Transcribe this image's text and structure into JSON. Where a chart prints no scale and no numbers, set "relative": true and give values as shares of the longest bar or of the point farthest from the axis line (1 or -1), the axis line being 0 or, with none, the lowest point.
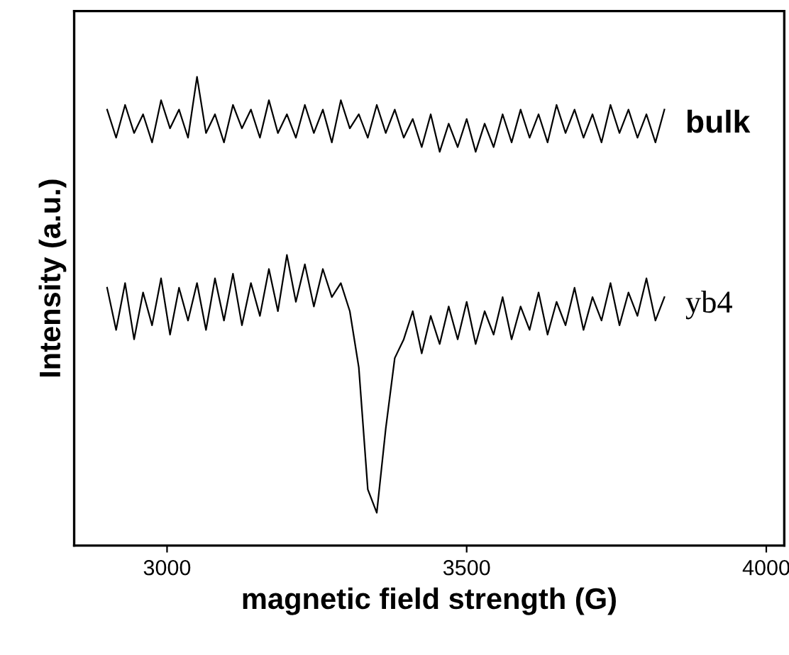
{
  "chart_data": {
    "type": "line",
    "relative": true,
    "xlabel": "magnetic field strength (G)",
    "ylabel": "Intensity (a.u.)",
    "xlim": [
      2845,
      4030
    ],
    "xticks": [
      3000,
      3500,
      4000
    ],
    "grid": false,
    "legend": false,
    "marker": "none",
    "line_style": "solid",
    "x": [
      2900,
      2915,
      2930,
      2945,
      2960,
      2975,
      2990,
      3005,
      3020,
      3035,
      3050,
      3065,
      3080,
      3095,
      3110,
      3125,
      3140,
      3155,
      3170,
      3185,
      3200,
      3215,
      3230,
      3245,
      3260,
      3275,
      3290,
      3305,
      3320,
      3335,
      3350,
      3365,
      3380,
      3395,
      3410,
      3425,
      3440,
      3455,
      3470,
      3485,
      3500,
      3515,
      3530,
      3545,
      3560,
      3575,
      3590,
      3605,
      3620,
      3635,
      3650,
      3665,
      3680,
      3695,
      3710,
      3725,
      3740,
      3755,
      3770,
      3785,
      3800,
      3815,
      3830
    ],
    "series": [
      {
        "name": "bulk",
        "color": "#000000",
        "values": [
          0.93,
          0.87,
          0.94,
          0.88,
          0.92,
          0.86,
          0.95,
          0.89,
          0.93,
          0.87,
          1.0,
          0.88,
          0.92,
          0.86,
          0.94,
          0.89,
          0.93,
          0.87,
          0.95,
          0.88,
          0.92,
          0.87,
          0.94,
          0.88,
          0.93,
          0.86,
          0.95,
          0.89,
          0.92,
          0.87,
          0.94,
          0.88,
          0.93,
          0.87,
          0.91,
          0.85,
          0.92,
          0.84,
          0.9,
          0.85,
          0.91,
          0.84,
          0.9,
          0.85,
          0.92,
          0.86,
          0.93,
          0.87,
          0.92,
          0.86,
          0.94,
          0.88,
          0.93,
          0.87,
          0.92,
          0.86,
          0.94,
          0.88,
          0.93,
          0.87,
          0.92,
          0.86,
          0.93
        ]
      },
      {
        "name": "yb4",
        "color": "#000000",
        "values": [
          0.55,
          0.46,
          0.56,
          0.44,
          0.54,
          0.47,
          0.57,
          0.45,
          0.55,
          0.48,
          0.56,
          0.46,
          0.57,
          0.48,
          0.58,
          0.47,
          0.56,
          0.49,
          0.59,
          0.5,
          0.62,
          0.52,
          0.6,
          0.51,
          0.59,
          0.53,
          0.56,
          0.5,
          0.38,
          0.12,
          0.07,
          0.25,
          0.4,
          0.44,
          0.5,
          0.41,
          0.49,
          0.43,
          0.51,
          0.44,
          0.52,
          0.43,
          0.5,
          0.45,
          0.53,
          0.44,
          0.51,
          0.46,
          0.54,
          0.45,
          0.52,
          0.47,
          0.55,
          0.46,
          0.53,
          0.48,
          0.56,
          0.47,
          0.54,
          0.49,
          0.57,
          0.48,
          0.53
        ]
      }
    ]
  }
}
